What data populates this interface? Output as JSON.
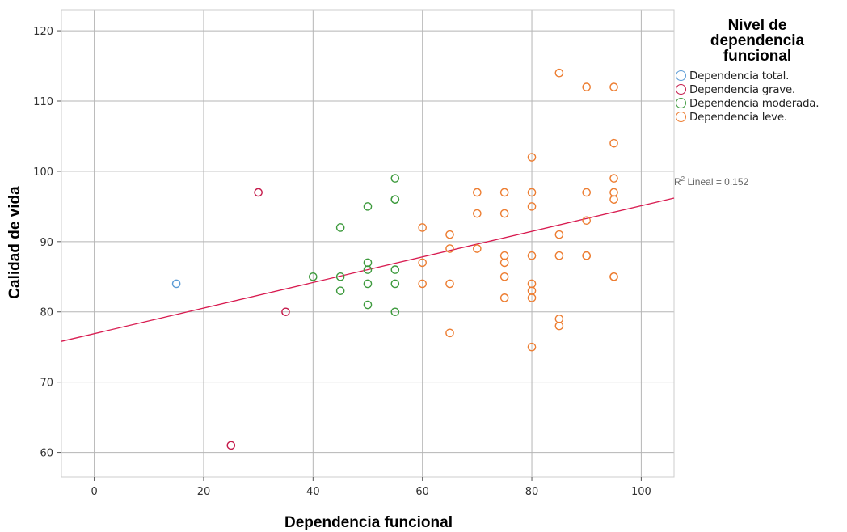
{
  "chart_data": {
    "type": "scatter",
    "xlabel": "Dependencia funcional",
    "ylabel": "Calidad de vida",
    "xlim": [
      -6,
      106
    ],
    "ylim": [
      56.5,
      123
    ],
    "xticks": [
      0,
      20,
      40,
      60,
      80,
      100
    ],
    "yticks": [
      60,
      70,
      80,
      90,
      100,
      110,
      120
    ],
    "grid": true,
    "legend": {
      "title": [
        "Nivel de",
        "dependencia",
        "funcional"
      ],
      "placement": "right"
    },
    "series": [
      {
        "name": "Dependencia total.",
        "color": "#5b9bd5",
        "points": [
          [
            15,
            84
          ]
        ]
      },
      {
        "name": "Dependencia grave.",
        "color": "#c51b4b",
        "points": [
          [
            25,
            61
          ],
          [
            30,
            97
          ],
          [
            35,
            80
          ]
        ]
      },
      {
        "name": "Dependencia moderada.",
        "color": "#3d9a3d",
        "points": [
          [
            40,
            85
          ],
          [
            45,
            92
          ],
          [
            45,
            85
          ],
          [
            45,
            83
          ],
          [
            50,
            95
          ],
          [
            50,
            87
          ],
          [
            50,
            86
          ],
          [
            50,
            84
          ],
          [
            50,
            81
          ],
          [
            55,
            99
          ],
          [
            55,
            96
          ],
          [
            55,
            96
          ],
          [
            55,
            86
          ],
          [
            55,
            84
          ],
          [
            55,
            80
          ]
        ]
      },
      {
        "name": "Dependencia leve.",
        "color": "#ed7d31",
        "points": [
          [
            60,
            92
          ],
          [
            60,
            87
          ],
          [
            60,
            84
          ],
          [
            65,
            91
          ],
          [
            65,
            89
          ],
          [
            65,
            84
          ],
          [
            65,
            77
          ],
          [
            70,
            97
          ],
          [
            70,
            94
          ],
          [
            70,
            89
          ],
          [
            75,
            97
          ],
          [
            75,
            94
          ],
          [
            75,
            88
          ],
          [
            75,
            87
          ],
          [
            75,
            85
          ],
          [
            75,
            82
          ],
          [
            80,
            102
          ],
          [
            80,
            97
          ],
          [
            80,
            95
          ],
          [
            80,
            88
          ],
          [
            80,
            84
          ],
          [
            80,
            83
          ],
          [
            80,
            82
          ],
          [
            80,
            75
          ],
          [
            85,
            114
          ],
          [
            85,
            91
          ],
          [
            85,
            88
          ],
          [
            85,
            79
          ],
          [
            85,
            78
          ],
          [
            90,
            112
          ],
          [
            90,
            97
          ],
          [
            90,
            93
          ],
          [
            90,
            88
          ],
          [
            90,
            88
          ],
          [
            95,
            112
          ],
          [
            95,
            104
          ],
          [
            95,
            99
          ],
          [
            95,
            97
          ],
          [
            95,
            96
          ],
          [
            95,
            85
          ],
          [
            95,
            85
          ]
        ]
      }
    ],
    "fit_line": {
      "label": "R² Lineal = 0.152",
      "r2_text": "Lineal = 0.152",
      "color": "#d81b50",
      "intercept": 76.9,
      "slope": 0.182
    }
  }
}
